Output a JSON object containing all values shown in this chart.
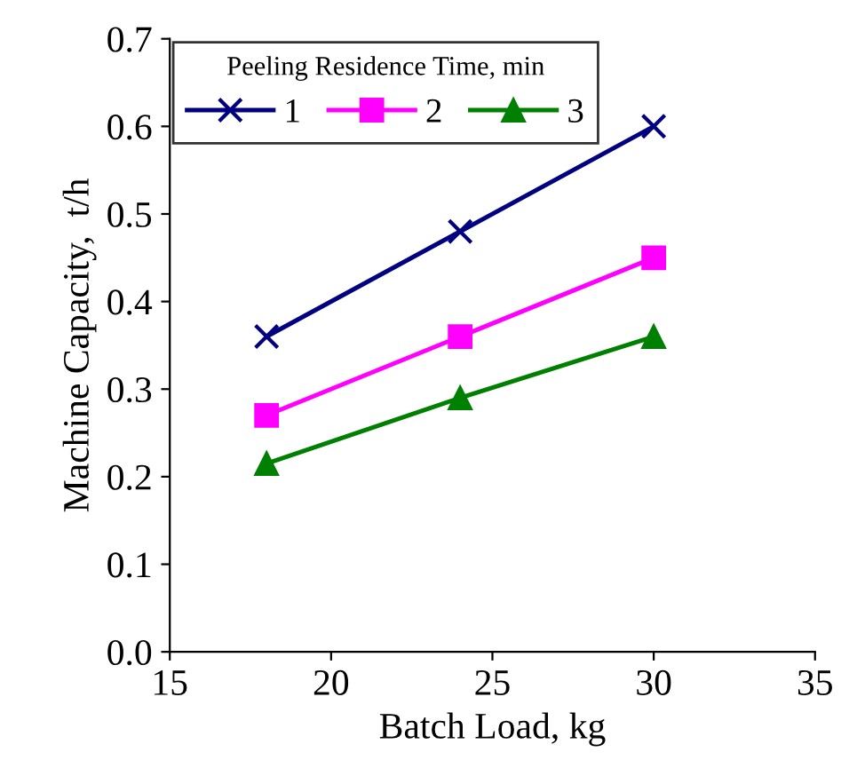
{
  "chart_data": {
    "type": "line",
    "xlabel": "Batch Load, kg",
    "ylabel": "Machine Capacity,  t/h",
    "legend_title": "Peeling Residence Time, min",
    "x": [
      18,
      24,
      30
    ],
    "series": [
      {
        "name": "1",
        "color": "#000080",
        "values": [
          0.36,
          0.48,
          0.6
        ],
        "marker": "cross"
      },
      {
        "name": "2",
        "color": "#ff00ff",
        "values": [
          0.27,
          0.36,
          0.45
        ],
        "marker": "square"
      },
      {
        "name": "3",
        "color": "#008000",
        "values": [
          0.215,
          0.29,
          0.36
        ],
        "marker": "triangle"
      }
    ],
    "xlim": [
      15,
      35
    ],
    "xticks": [
      15,
      20,
      25,
      30,
      35
    ],
    "ylim": [
      0,
      0.7
    ],
    "yticks": [
      {
        "value": 0,
        "label": "0.0"
      },
      0.1,
      0.2,
      0.3,
      0.4,
      0.5,
      0.6,
      0.7
    ],
    "grid": false,
    "legend": "top left",
    "line_style": "solid"
  }
}
